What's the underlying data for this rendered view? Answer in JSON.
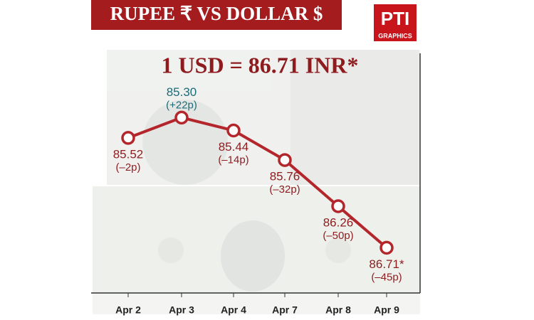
{
  "chart_data": {
    "type": "line",
    "title": "RUPEE ₹ VS DOLLAR $",
    "subtitle": "1 USD = 86.71 INR*",
    "logo": "PTI",
    "logo_caption": "GRAPHICS",
    "categories": [
      "Apr 2",
      "Apr 3",
      "Apr 4",
      "Apr 7",
      "Apr 8",
      "Apr 9"
    ],
    "series": [
      {
        "name": "INR per USD",
        "color": "#b3262b",
        "values": [
          85.52,
          85.3,
          85.44,
          85.76,
          86.26,
          86.71
        ],
        "value_labels": [
          "85.52",
          "85.30",
          "85.44",
          "85.76",
          "86.26",
          "86.71*"
        ],
        "change_labels": [
          "(–2p)",
          "(+22p)",
          "(–14p)",
          "(–32p)",
          "(–50p)",
          "(–45p)"
        ]
      }
    ],
    "ylim": [
      87.2,
      84.6
    ]
  }
}
